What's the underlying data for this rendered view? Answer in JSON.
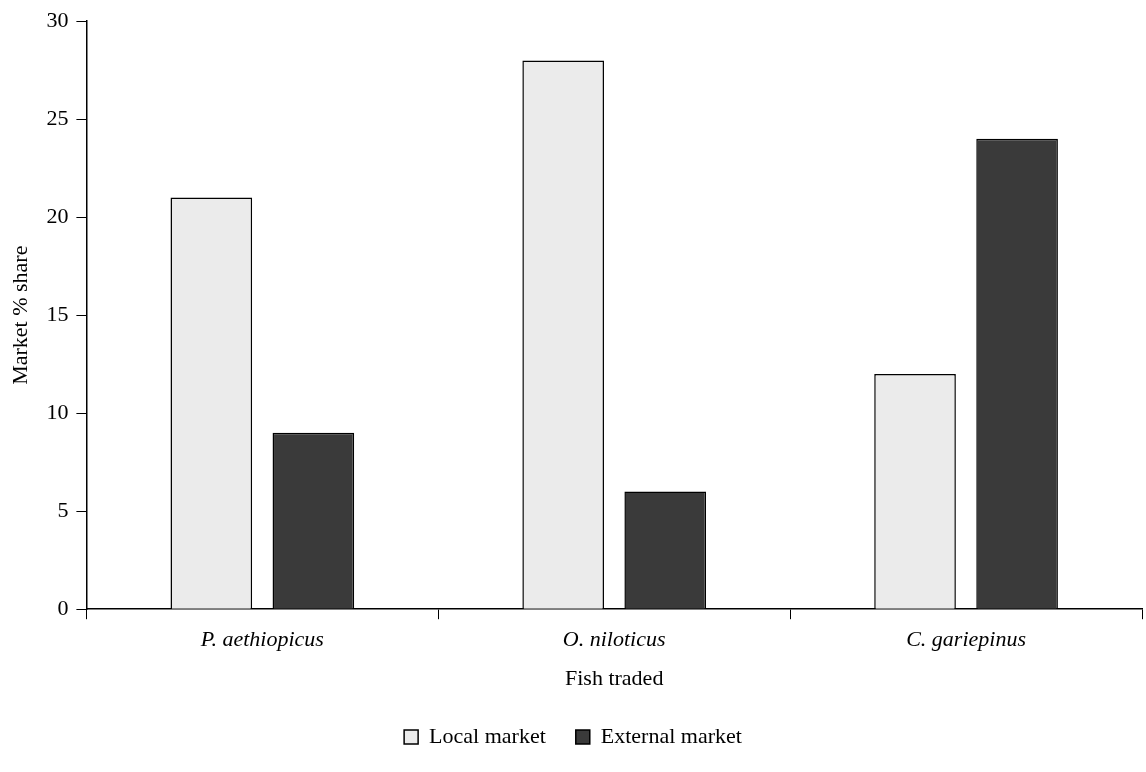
{
  "chart_data": {
    "type": "bar",
    "xlabel": "Fish traded",
    "ylabel": "Market % share",
    "categories": [
      "P. aethiopicus",
      "O. niloticus",
      "C. gariepinus"
    ],
    "series": [
      {
        "name": "Local market",
        "color": "#ebebeb",
        "values": [
          21,
          28,
          12
        ]
      },
      {
        "name": "External market",
        "color": "#3a3a3a",
        "values": [
          9,
          6,
          24
        ]
      }
    ],
    "ylim": [
      0,
      30
    ],
    "yticks": [
      0,
      5,
      10,
      15,
      20,
      25,
      30
    ],
    "grid": false,
    "legend": "bottom"
  }
}
